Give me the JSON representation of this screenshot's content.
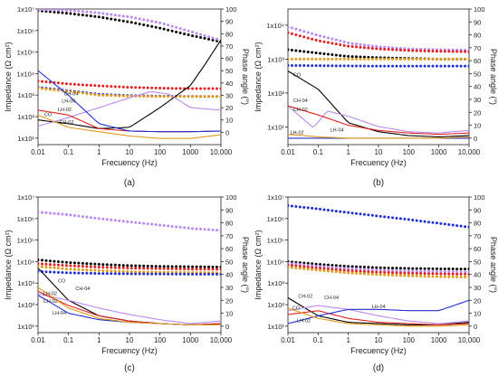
{
  "chart_data": [
    {
      "type": "line",
      "panel_label": "(a)",
      "xlabel": "Frecuency (Hz)",
      "ylabel": "Impedance (Ω cm²)",
      "y2label": "Phase angle (°)",
      "x_scale": "log",
      "y_scale": "log",
      "xlim": [
        0.01,
        10000
      ],
      "ylim": [
        5,
        10000000
      ],
      "y2lim": [
        -10,
        100
      ],
      "x_ticks": [
        "0.01",
        "0.1",
        "1",
        "10",
        "100",
        "1000",
        "10,000"
      ],
      "y_ticks": [
        "1x10¹",
        "1x10²",
        "1x10³",
        "1x10⁴",
        "1x10⁵",
        "1x10⁶",
        "1x10⁷"
      ],
      "y2_ticks": [
        "0",
        "10",
        "20",
        "30",
        "40",
        "50",
        "60",
        "70",
        "80",
        "90",
        "100"
      ],
      "series_impedance": [
        {
          "color": "#000000",
          "x": [
            0.01,
            0.1,
            1,
            10,
            100,
            1000,
            10000
          ],
          "y": [
            8500000,
            6300000,
            4300000,
            2500000,
            1300000,
            600000,
            300000
          ]
        },
        {
          "color": "#bb88ee",
          "x": [
            0.01,
            0.1,
            1,
            10,
            100,
            1000,
            10000
          ],
          "y": [
            9500000,
            8700000,
            6600000,
            4300000,
            2300000,
            900000,
            350000
          ]
        },
        {
          "color": "#e02020",
          "x": [
            0.01,
            0.1,
            1,
            10,
            100,
            1000,
            10000
          ],
          "y": [
            4500,
            3300,
            2700,
            2300,
            2100,
            2000,
            2000
          ]
        },
        {
          "color": "#1f2fd0",
          "x": [
            0.01,
            0.1,
            1,
            10,
            100,
            1000,
            10000
          ],
          "y": [
            2300,
            1600,
            1100,
            950,
            900,
            870,
            860
          ]
        },
        {
          "color": "#e09a1a",
          "x": [
            0.01,
            0.1,
            1,
            10,
            100,
            1000,
            10000
          ],
          "y": [
            2100,
            1500,
            1000,
            900,
            870,
            860,
            860
          ]
        }
      ],
      "series_phase": [
        {
          "color": "#000000",
          "x": [
            0.01,
            0.1,
            1,
            10,
            100,
            1000,
            3000,
            10000
          ],
          "y": [
            10,
            7,
            3,
            4,
            20,
            38,
            55,
            75
          ]
        },
        {
          "color": "#bb88ee",
          "x": [
            0.01,
            0.1,
            1,
            10,
            50,
            200,
            1000,
            10000
          ],
          "y": [
            5,
            12,
            20,
            28,
            33,
            31,
            20,
            18
          ]
        },
        {
          "color": "#e02020",
          "x": [
            0.01,
            0.1,
            1,
            10,
            100,
            1000,
            10000
          ],
          "y": [
            18,
            14,
            3,
            1,
            0.5,
            0.5,
            1
          ]
        },
        {
          "color": "#1f2fd0",
          "x": [
            0.01,
            0.1,
            1,
            10,
            100,
            1000,
            10000
          ],
          "y": [
            50,
            30,
            7,
            1,
            0.5,
            0.5,
            1
          ]
        },
        {
          "color": "#e09a1a",
          "x": [
            0.01,
            0.1,
            1,
            10,
            100,
            1000,
            10000
          ],
          "y": [
            14,
            4,
            0.5,
            -3,
            -5,
            -5,
            -2
          ]
        }
      ],
      "annotations": [
        {
          "text": "CH-04",
          "x": 0.07,
          "y2": 30
        },
        {
          "text": "LH-04",
          "x": 0.06,
          "y2": 24
        },
        {
          "text": "LH-02",
          "x": 0.045,
          "y2": 17
        },
        {
          "text": "CO",
          "x": 0.016,
          "y2": 13
        },
        {
          "text": "CH-02",
          "x": 0.05,
          "y2": 7
        }
      ]
    },
    {
      "type": "line",
      "panel_label": "(b)",
      "xlabel": "Frecuency (Hz)",
      "ylabel": "Impedance (Ω cm²)",
      "y2label": "Phase angle (°)",
      "x_scale": "log",
      "y_scale": "log",
      "xlim": [
        0.01,
        10000
      ],
      "ylim": [
        3,
        30000
      ],
      "y2lim": [
        -5,
        100
      ],
      "x_ticks": [
        "0.01",
        "0.1",
        "1",
        "10",
        "100",
        "1000",
        "10,000"
      ],
      "y_ticks": [
        "1x10¹",
        "1x10²",
        "1x10³",
        "1x10⁴"
      ],
      "y2_ticks": [
        "0",
        "10",
        "20",
        "30",
        "40",
        "50",
        "60",
        "70",
        "80",
        "90",
        "100"
      ],
      "series_impedance": [
        {
          "color": "#bb88ee",
          "x": [
            0.01,
            0.1,
            1,
            10,
            100,
            1000,
            10000
          ],
          "y": [
            9000,
            5000,
            3000,
            2300,
            2000,
            1900,
            1850
          ]
        },
        {
          "color": "#e02020",
          "x": [
            0.01,
            0.1,
            1,
            10,
            100,
            1000,
            10000
          ],
          "y": [
            6000,
            3500,
            2400,
            2000,
            1800,
            1700,
            1650
          ]
        },
        {
          "color": "#000000",
          "x": [
            0.01,
            0.1,
            1,
            10,
            100,
            1000,
            10000
          ],
          "y": [
            1900,
            1500,
            1200,
            1100,
            1050,
            1000,
            1000
          ]
        },
        {
          "color": "#e09a1a",
          "x": [
            0.01,
            0.1,
            1,
            10,
            100,
            1000,
            10000
          ],
          "y": [
            1000,
            1000,
            1000,
            1000,
            1000,
            1000,
            1000
          ]
        },
        {
          "color": "#1f2fd0",
          "x": [
            0.01,
            0.1,
            1,
            10,
            100,
            1000,
            10000
          ],
          "y": [
            650,
            640,
            630,
            620,
            620,
            620,
            620
          ]
        }
      ],
      "series_phase": [
        {
          "color": "#000000",
          "x": [
            0.01,
            0.1,
            1,
            10,
            100,
            1000,
            10000
          ],
          "y": [
            52,
            38,
            12,
            5,
            2,
            1,
            2
          ]
        },
        {
          "color": "#bb88ee",
          "x": [
            0.01,
            0.07,
            0.2,
            1,
            10,
            100,
            1000,
            10000
          ],
          "y": [
            25,
            8,
            21,
            17,
            9,
            5,
            4,
            6
          ]
        },
        {
          "color": "#e02020",
          "x": [
            0.01,
            0.1,
            1,
            10,
            100,
            1000,
            10000
          ],
          "y": [
            25,
            18,
            10,
            6,
            4,
            3,
            4
          ]
        },
        {
          "color": "#1f2fd0",
          "x": [
            0.01,
            0.1,
            1,
            10,
            100,
            1000,
            10000
          ],
          "y": [
            0,
            0,
            0,
            0,
            0,
            0,
            0
          ]
        },
        {
          "color": "#e09a1a",
          "x": [
            0.01,
            0.1,
            1,
            10,
            100,
            1000,
            10000
          ],
          "y": [
            3,
            1,
            0,
            0,
            0,
            0,
            1
          ]
        }
      ],
      "annotations": [
        {
          "text": "CO",
          "x": 0.015,
          "y2": 48
        },
        {
          "text": "CH-04",
          "x": 0.015,
          "y2": 28
        },
        {
          "text": "CH-02",
          "x": 0.015,
          "y2": 21
        },
        {
          "text": "LH-02",
          "x": 0.012,
          "y2": 3
        },
        {
          "text": "LH-04",
          "x": 0.25,
          "y2": 5
        }
      ]
    },
    {
      "type": "line",
      "panel_label": "(c)",
      "xlabel": "Frecuency (Hz)",
      "ylabel": "Impedance (Ω cm²)",
      "y2label": "Phase angle (°)",
      "x_scale": "log",
      "y_scale": "log",
      "xlim": [
        0.01,
        10000
      ],
      "ylim": [
        5,
        10000000
      ],
      "y2lim": [
        -5,
        100
      ],
      "x_ticks": [
        "0.01",
        "0.1",
        "1",
        "10",
        "100",
        "1000",
        "10,000"
      ],
      "y_ticks": [
        "1x10¹",
        "1x10²",
        "1x10³",
        "1x10⁴",
        "1x10⁵",
        "1x10⁶",
        "1x10⁷"
      ],
      "y2_ticks": [
        "0",
        "10",
        "20",
        "30",
        "40",
        "50",
        "60",
        "70",
        "80",
        "90",
        "100"
      ],
      "series_impedance": [
        {
          "color": "#bb88ee",
          "x": [
            0.01,
            0.1,
            1,
            10,
            100,
            1000,
            10000
          ],
          "y": [
            2000000,
            1500000,
            1000000,
            700000,
            500000,
            350000,
            280000
          ]
        },
        {
          "color": "#000000",
          "x": [
            0.01,
            0.1,
            1,
            10,
            100,
            1000,
            10000
          ],
          "y": [
            12000,
            9000,
            7500,
            6500,
            6000,
            5800,
            5600
          ]
        },
        {
          "color": "#e02020",
          "x": [
            0.01,
            0.1,
            1,
            10,
            100,
            1000,
            10000
          ],
          "y": [
            8000,
            6500,
            5500,
            5000,
            4700,
            4500,
            4400
          ]
        },
        {
          "color": "#e09a1a",
          "x": [
            0.01,
            0.1,
            1,
            10,
            100,
            1000,
            10000
          ],
          "y": [
            6000,
            4500,
            3800,
            3400,
            3200,
            3100,
            3000
          ]
        },
        {
          "color": "#1f2fd0",
          "x": [
            0.01,
            0.1,
            1,
            10,
            100,
            1000,
            10000
          ],
          "y": [
            3500,
            3000,
            2800,
            2700,
            2650,
            2600,
            2600
          ]
        }
      ],
      "series_phase": [
        {
          "color": "#000000",
          "x": [
            0.01,
            0.1,
            1,
            10,
            100,
            1000,
            10000
          ],
          "y": [
            45,
            20,
            8,
            4,
            2,
            1,
            2
          ]
        },
        {
          "color": "#bb88ee",
          "x": [
            0.01,
            0.1,
            1,
            10,
            100,
            1000,
            10000
          ],
          "y": [
            25,
            20,
            14,
            9,
            5,
            2,
            4
          ]
        },
        {
          "color": "#e02020",
          "x": [
            0.01,
            0.1,
            1,
            10,
            100,
            1000,
            10000
          ],
          "y": [
            27,
            16,
            8,
            4,
            2,
            1,
            2
          ]
        },
        {
          "color": "#1f2fd0",
          "x": [
            0.01,
            0.1,
            1,
            10,
            100,
            1000,
            10000
          ],
          "y": [
            24,
            10,
            5,
            3,
            2,
            1,
            1
          ]
        },
        {
          "color": "#e09a1a",
          "x": [
            0.01,
            0.1,
            1,
            10,
            100,
            1000,
            10000
          ],
          "y": [
            30,
            14,
            6,
            3,
            2,
            1,
            1
          ]
        }
      ],
      "annotations": [
        {
          "text": "CO",
          "x": 0.045,
          "y2": 34
        },
        {
          "text": "CH-04",
          "x": 0.17,
          "y2": 28
        },
        {
          "text": "LH-02",
          "x": 0.015,
          "y2": 24
        },
        {
          "text": "CH-02",
          "x": 0.015,
          "y2": 18
        },
        {
          "text": "LH-04",
          "x": 0.03,
          "y2": 9
        }
      ]
    },
    {
      "type": "line",
      "panel_label": "(d)",
      "xlabel": "Frecuency (Hz)",
      "ylabel": "Impedance (Ω cm²)",
      "y2label": "Phase angle (°)",
      "x_scale": "log",
      "y_scale": "log",
      "xlim": [
        0.01,
        10000
      ],
      "ylim": [
        5,
        10000000
      ],
      "y2lim": [
        -5,
        100
      ],
      "x_ticks": [
        "0.01",
        "0.1",
        "1",
        "10",
        "100",
        "1000",
        "10,000"
      ],
      "y_ticks": [
        "1x10¹",
        "1x10²",
        "1x10³",
        "1x10⁴",
        "1x10⁵",
        "1x10⁶",
        "1x10⁷"
      ],
      "y2_ticks": [
        "0",
        "10",
        "20",
        "30",
        "40",
        "50",
        "60",
        "70",
        "80",
        "90",
        "100"
      ],
      "series_impedance": [
        {
          "color": "#1f2fd0",
          "x": [
            0.01,
            0.1,
            1,
            10,
            100,
            1000,
            10000
          ],
          "y": [
            4000000,
            2800000,
            1900000,
            1300000,
            900000,
            600000,
            400000
          ]
        },
        {
          "color": "#000000",
          "x": [
            0.01,
            0.1,
            1,
            10,
            100,
            1000,
            10000
          ],
          "y": [
            10000,
            7500,
            6000,
            5200,
            4800,
            4600,
            4500
          ]
        },
        {
          "color": "#bb88ee",
          "x": [
            0.01,
            0.1,
            1,
            10,
            100,
            1000,
            10000
          ],
          "y": [
            8500,
            6000,
            4800,
            4000,
            3600,
            3400,
            3300
          ]
        },
        {
          "color": "#e02020",
          "x": [
            0.01,
            0.1,
            1,
            10,
            100,
            1000,
            10000
          ],
          "y": [
            7000,
            5000,
            3800,
            3200,
            2900,
            2700,
            2600
          ]
        },
        {
          "color": "#e09a1a",
          "x": [
            0.01,
            0.1,
            1,
            10,
            100,
            1000,
            10000
          ],
          "y": [
            5500,
            4000,
            3000,
            2500,
            2200,
            2000,
            1900
          ]
        }
      ],
      "series_phase": [
        {
          "color": "#000000",
          "x": [
            0.01,
            0.1,
            1,
            10,
            100,
            1000,
            10000
          ],
          "y": [
            22,
            8,
            3,
            2,
            1,
            1,
            3
          ]
        },
        {
          "color": "#bb88ee",
          "x": [
            0.01,
            0.1,
            1,
            10,
            100,
            1000,
            10000
          ],
          "y": [
            12,
            16,
            13,
            8,
            4,
            2,
            4
          ]
        },
        {
          "color": "#e02020",
          "x": [
            0.01,
            0.1,
            1,
            10,
            100,
            1000,
            10000
          ],
          "y": [
            9,
            12,
            6,
            3,
            2,
            1,
            2
          ]
        },
        {
          "color": "#1f2fd0",
          "x": [
            0.01,
            0.1,
            1,
            10,
            100,
            1000,
            10000
          ],
          "y": [
            2,
            8,
            13,
            13,
            12,
            12,
            20
          ]
        },
        {
          "color": "#e09a1a",
          "x": [
            0.01,
            0.1,
            1,
            10,
            100,
            1000,
            10000
          ],
          "y": [
            14,
            6,
            2,
            1,
            0,
            0,
            1
          ]
        }
      ],
      "annotations": [
        {
          "text": "CH-02",
          "x": 0.022,
          "y2": 22
        },
        {
          "text": "CH-04",
          "x": 0.16,
          "y2": 21
        },
        {
          "text": "LH-04",
          "x": 6,
          "y2": 14
        },
        {
          "text": "CO",
          "x": 0.014,
          "y2": 13
        },
        {
          "text": "LH-02",
          "x": 0.02,
          "y2": 3
        }
      ]
    }
  ]
}
